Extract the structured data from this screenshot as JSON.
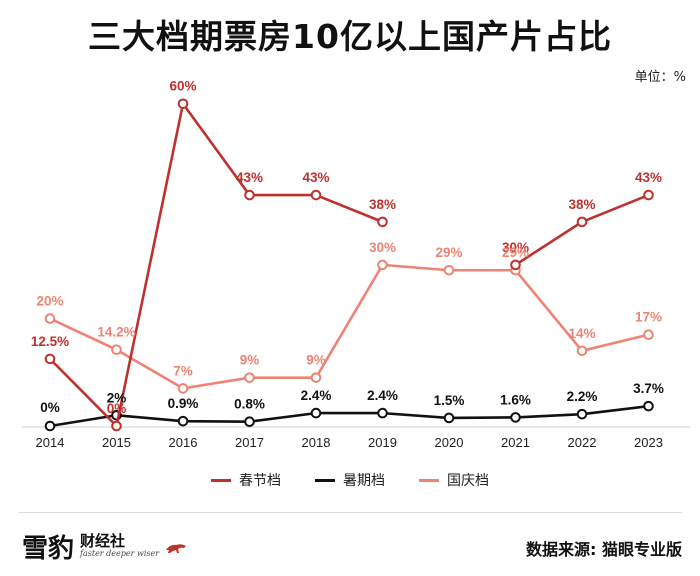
{
  "header": {
    "title": "三大档期票房10亿以上国产片占比",
    "unit": "单位：%"
  },
  "footer": {
    "brand": "雪豹",
    "brand_sub": "财经社",
    "brand_slogan": "faster deeper wiser",
    "source": "数据来源: 猫眼专业版"
  },
  "colors": {
    "spring": "#c0302e",
    "summer": "#111111",
    "national": "#ef8373"
  },
  "chart_data": {
    "type": "line",
    "title": "三大档期票房10亿以上国产片占比",
    "unit": "%",
    "x": [
      "2014",
      "2015",
      "2016",
      "2017",
      "2018",
      "2019",
      "2020",
      "2021",
      "2022",
      "2023"
    ],
    "ylim": [
      0,
      62
    ],
    "grid": false,
    "legend_position": "bottom",
    "series": [
      {
        "key": "spring",
        "name": "春节档",
        "values": [
          12.5,
          0,
          60,
          43,
          43,
          38,
          null,
          30,
          38,
          43
        ],
        "labels": [
          "12.5%",
          "0%",
          "60%",
          "43%",
          "43%",
          "38%",
          null,
          "30%",
          "38%",
          "43%"
        ]
      },
      {
        "key": "summer",
        "name": "暑期档",
        "values": [
          0,
          2,
          0.9,
          0.8,
          2.4,
          2.4,
          1.5,
          1.6,
          2.2,
          3.7
        ],
        "labels": [
          "0%",
          "2%",
          "0.9%",
          "0.8%",
          "2.4%",
          "2.4%",
          "1.5%",
          "1.6%",
          "2.2%",
          "3.7%"
        ]
      },
      {
        "key": "national",
        "name": "国庆档",
        "values": [
          20,
          14.2,
          7,
          9,
          9,
          30,
          29,
          29,
          14,
          17
        ],
        "labels": [
          "20%",
          "14.2%",
          "7%",
          "9%",
          "9%",
          "30%",
          "29%",
          "29%",
          "14%",
          "17%"
        ]
      }
    ]
  }
}
